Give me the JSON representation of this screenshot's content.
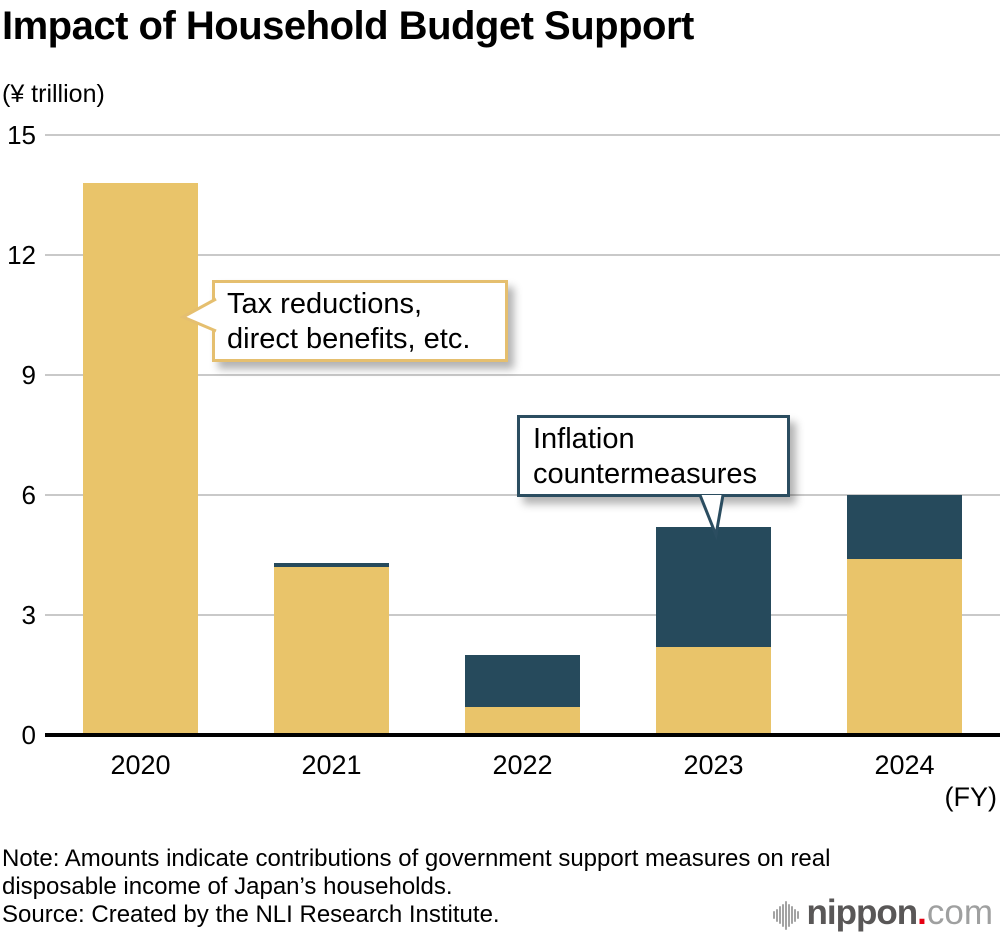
{
  "title": "Impact of Household Budget Support",
  "unit_label": "(¥ trillion)",
  "fy_label": "(FY)",
  "callouts": {
    "tax": {
      "lines": [
        "Tax reductions,",
        "direct benefits, etc."
      ],
      "border_color": "#e5bf6f"
    },
    "inflation": {
      "lines": [
        "Inflation",
        "countermeasures"
      ],
      "border_color": "#2b4d60"
    }
  },
  "note_lines": [
    "Note: Amounts indicate contributions of government support measures on real",
    "disposable income of Japan’s households."
  ],
  "source_line": "Source: Created by the NLI Research Institute.",
  "logo": {
    "brand": "nippon",
    "dot": ".",
    "suffix": "com"
  },
  "colors": {
    "tan": "#e9c46a",
    "navy": "#264a5c",
    "gridline": "#c9c9c9",
    "axis": "#000000",
    "logo_gray": "#595757",
    "logo_light_gray": "#9fa0a0",
    "logo_red": "#e60012"
  },
  "chart_data": {
    "type": "bar",
    "stacked": true,
    "title": "Impact of Household Budget Support",
    "ylabel": "(¥ trillion)",
    "xlabel": "(FY)",
    "categories": [
      "2020",
      "2021",
      "2022",
      "2023",
      "2024"
    ],
    "series": [
      {
        "name": "Tax reductions, direct benefits, etc.",
        "color": "#e9c46a",
        "values": [
          13.8,
          4.2,
          0.7,
          2.2,
          4.4
        ]
      },
      {
        "name": "Inflation countermeasures",
        "color": "#264a5c",
        "values": [
          0,
          0.1,
          1.3,
          3.0,
          1.6
        ]
      }
    ],
    "totals": [
      13.8,
      4.3,
      2.0,
      5.2,
      6.0
    ],
    "yticks": [
      0,
      3,
      6,
      9,
      12,
      15
    ],
    "ylim": [
      0,
      15
    ],
    "grid": true,
    "legend": "annotated via callouts"
  }
}
